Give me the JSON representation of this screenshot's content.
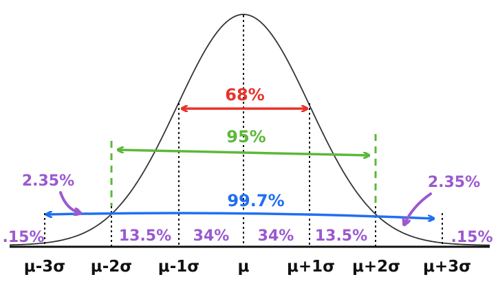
{
  "colors": {
    "curve": "#333333",
    "axis": "#111111",
    "red": "#e8322a",
    "green": "#5cb838",
    "blue": "#1f6ff2",
    "purple": "#9b59d0"
  },
  "axis_labels": {
    "m3": "μ-3σ",
    "m2": "μ-2σ",
    "m1": "μ-1σ",
    "mu": "μ",
    "p1": "μ+1σ",
    "p2": "μ+2σ",
    "p3": "μ+3σ"
  },
  "regions": {
    "tail_left": ".15%",
    "left_2_3": "13.5%",
    "left_1_2": "34%",
    "right_1_2": "34%",
    "right_2_3": "13.5%",
    "tail_right": ".15%"
  },
  "intervals": {
    "one_sigma": "68%",
    "two_sigma": "95%",
    "three_sigma": "99.7%"
  },
  "callouts": {
    "left": "2.35%",
    "right": "2.35%"
  }
}
